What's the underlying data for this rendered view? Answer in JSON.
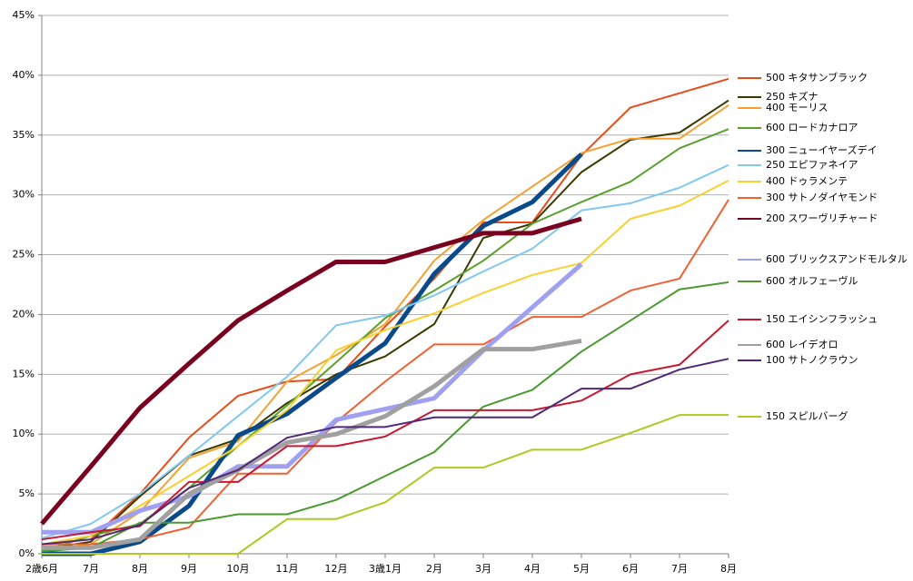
{
  "chart_data": {
    "type": "line",
    "categories": [
      "2歳6月",
      "7月",
      "8月",
      "9月",
      "10月",
      "11月",
      "12月",
      "3歳1月",
      "2月",
      "3月",
      "4月",
      "5月",
      "6月",
      "7月",
      "8月"
    ],
    "ylim": [
      0,
      45
    ],
    "yticks": [
      {
        "value": 0,
        "label": "0%"
      },
      {
        "value": 5,
        "label": "5%"
      },
      {
        "value": 10,
        "label": "10%"
      },
      {
        "value": 15,
        "label": "15%"
      },
      {
        "value": 20,
        "label": "20%"
      },
      {
        "value": 25,
        "label": "25%"
      },
      {
        "value": 30,
        "label": "30%"
      },
      {
        "value": 35,
        "label": "35%"
      },
      {
        "value": 40,
        "label": "40%"
      },
      {
        "value": 45,
        "label": "45%"
      }
    ],
    "grid": true,
    "series": [
      {
        "name": "500 キタサンブラック",
        "color": "#e84c1a",
        "values": [
          0.8,
          1.2,
          5.0,
          9.7,
          13.2,
          14.4,
          14.6,
          19.0,
          23.0,
          27.7,
          27.7,
          33.3,
          37.3,
          38.5,
          39.7
        ]
      },
      {
        "name": "250 キズナ",
        "color": "#3a3a00",
        "values": [
          0.4,
          1.0,
          4.8,
          8.2,
          9.6,
          12.6,
          15.0,
          16.5,
          19.2,
          26.4,
          27.6,
          31.9,
          34.6,
          35.2,
          37.9
        ]
      },
      {
        "name": "400 モーリス",
        "color": "#f5a030",
        "values": [
          0.2,
          0.8,
          3.5,
          8.0,
          9.4,
          14.4,
          16.6,
          19.2,
          24.5,
          27.9,
          30.7,
          33.5,
          34.7,
          34.7,
          37.5
        ]
      },
      {
        "name": "600 ロードカナロア",
        "color": "#5aa02c",
        "values": [
          0.2,
          1.5,
          2.5,
          5.5,
          9.0,
          12.4,
          16.0,
          19.7,
          22.0,
          24.5,
          27.6,
          29.4,
          31.1,
          33.9,
          35.5
        ]
      },
      {
        "name": "300 ニューイヤーズデイ",
        "color": "#0a4a8a",
        "values": [
          0,
          0,
          1.0,
          4.0,
          9.9,
          11.7,
          14.7,
          17.6,
          23.4,
          27.4,
          29.4,
          33.4,
          null,
          null,
          null
        ]
      },
      {
        "name": "250 エピファネイア",
        "color": "#80c8f0",
        "values": [
          1.3,
          2.5,
          5.0,
          8.2,
          11.5,
          14.8,
          19.1,
          19.9,
          21.6,
          23.6,
          25.5,
          28.7,
          29.3,
          30.6,
          32.5
        ]
      },
      {
        "name": "400 ドゥラメンテ",
        "color": "#f8d030",
        "values": [
          0.8,
          1.5,
          4.0,
          6.5,
          9.0,
          12.0,
          17.0,
          18.7,
          20.1,
          21.8,
          23.3,
          24.3,
          28.0,
          29.1,
          31.2
        ]
      },
      {
        "name": "300 サトノダイヤモンド",
        "color": "#f06030",
        "values": [
          0.8,
          0.8,
          1.2,
          2.2,
          6.7,
          6.7,
          11.0,
          14.4,
          17.5,
          17.5,
          19.8,
          19.8,
          22.0,
          23.0,
          29.6
        ]
      },
      {
        "name": "200 スワーヴリチャード",
        "color": "#7a0020",
        "values": [
          2.5,
          7.3,
          12.2,
          15.9,
          19.5,
          22.0,
          24.4,
          24.4,
          25.6,
          26.8,
          26.8,
          28.0,
          null,
          null,
          null
        ]
      },
      {
        "name": "600 ブリックスアンドモルタル",
        "color": "#a0a0f0",
        "values": [
          1.8,
          1.8,
          3.6,
          4.8,
          7.3,
          7.3,
          11.2,
          12.1,
          13.0,
          17.0,
          20.6,
          24.2,
          null,
          null,
          null
        ]
      },
      {
        "name": "600 オルフェーヴル",
        "color": "#4a9a30",
        "values": [
          0.2,
          0.5,
          2.6,
          2.6,
          3.3,
          3.3,
          4.5,
          6.5,
          8.5,
          12.3,
          13.7,
          16.9,
          19.5,
          22.1,
          22.7
        ]
      },
      {
        "name": "150 エイシンフラッシュ",
        "color": "#c81830",
        "values": [
          1.2,
          1.8,
          2.3,
          6.0,
          6.0,
          9.0,
          9.0,
          9.8,
          12.0,
          12.0,
          12.0,
          12.8,
          15.0,
          15.8,
          19.5
        ]
      },
      {
        "name": "600 レイデオロ",
        "color": "#a0a0a0",
        "values": [
          0.5,
          0.5,
          1.2,
          5.0,
          7.0,
          9.3,
          10.0,
          11.5,
          14.0,
          17.1,
          17.1,
          17.8,
          null,
          null,
          null
        ]
      },
      {
        "name": "100 サトノクラウン",
        "color": "#502878",
        "values": [
          0.8,
          1.2,
          2.4,
          5.5,
          7.0,
          9.7,
          10.6,
          10.6,
          11.4,
          11.4,
          11.4,
          13.8,
          13.8,
          15.4,
          16.3
        ]
      },
      {
        "name": "150 スピルバーグ",
        "color": "#b0c820",
        "values": [
          0,
          0,
          0,
          0,
          0,
          2.9,
          2.9,
          4.3,
          7.2,
          7.2,
          8.7,
          8.7,
          10.1,
          11.6,
          11.6
        ]
      }
    ]
  }
}
